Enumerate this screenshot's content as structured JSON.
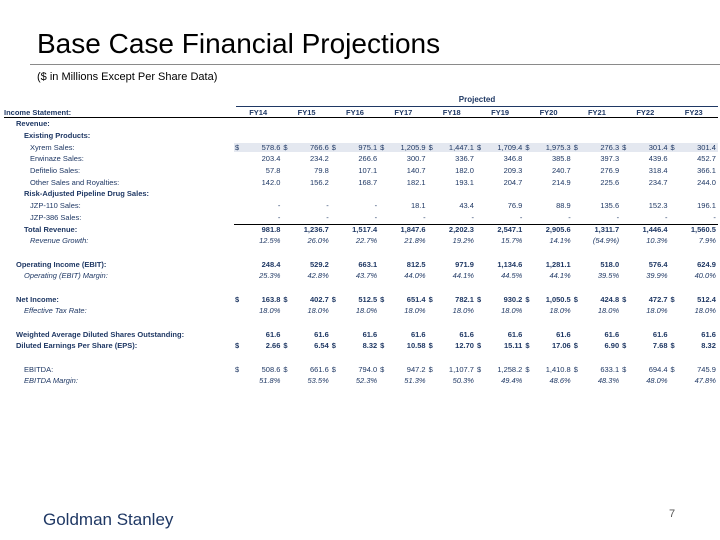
{
  "title": "Base Case Financial Projections",
  "subtitle": "($ in Millions Except Per Share Data)",
  "projected_label": "Projected",
  "header_label": "Income Statement:",
  "years": [
    "FY14",
    "FY15",
    "FY16",
    "FY17",
    "FY18",
    "FY19",
    "FY20",
    "FY21",
    "FY22",
    "FY23"
  ],
  "rows": {
    "revenue": "Revenue:",
    "existing": "Existing Products:",
    "xyrem": {
      "label": "Xyrem Sales:",
      "values": [
        "578.6",
        "766.6",
        "975.1",
        "1,205.9",
        "1,447.1",
        "1,709.4",
        "1,975.3",
        "276.3",
        "301.4",
        "301.4"
      ]
    },
    "erwinaze": {
      "label": "Erwinaze Sales:",
      "values": [
        "203.4",
        "234.2",
        "266.6",
        "300.7",
        "336.7",
        "346.8",
        "385.8",
        "397.3",
        "439.6",
        "452.7"
      ]
    },
    "defitelio": {
      "label": "Defitelio Sales:",
      "values": [
        "57.8",
        "79.8",
        "107.1",
        "140.7",
        "182.0",
        "209.3",
        "240.7",
        "276.9",
        "318.4",
        "366.1"
      ]
    },
    "other": {
      "label": "Other Sales and Royalties:",
      "values": [
        "142.0",
        "156.2",
        "168.7",
        "182.1",
        "193.1",
        "204.7",
        "214.9",
        "225.6",
        "234.7",
        "244.0"
      ]
    },
    "pipeline": "Risk-Adjusted Pipeline Drug Sales:",
    "jzp110": {
      "label": "JZP-110 Sales:",
      "values": [
        "-",
        "-",
        "-",
        "18.1",
        "43.4",
        "76.9",
        "88.9",
        "135.6",
        "152.3",
        "196.1"
      ]
    },
    "jzp386": {
      "label": "JZP-386 Sales:",
      "values": [
        "-",
        "-",
        "-",
        "-",
        "-",
        "-",
        "-",
        "-",
        "-",
        "-"
      ]
    },
    "total_revenue": {
      "label": "Total Revenue:",
      "values": [
        "981.8",
        "1,236.7",
        "1,517.4",
        "1,847.6",
        "2,202.3",
        "2,547.1",
        "2,905.6",
        "1,311.7",
        "1,446.4",
        "1,560.5"
      ]
    },
    "revenue_growth": {
      "label": "Revenue Growth:",
      "values": [
        "12.5%",
        "26.0%",
        "22.7%",
        "21.8%",
        "19.2%",
        "15.7%",
        "14.1%",
        "(54.9%)",
        "10.3%",
        "7.9%"
      ]
    },
    "ebit": {
      "label": "Operating Income (EBIT):",
      "values": [
        "248.4",
        "529.2",
        "663.1",
        "812.5",
        "971.9",
        "1,134.6",
        "1,281.1",
        "518.0",
        "576.4",
        "624.9"
      ]
    },
    "ebit_margin": {
      "label": "Operating (EBIT) Margin:",
      "values": [
        "25.3%",
        "42.8%",
        "43.7%",
        "44.0%",
        "44.1%",
        "44.5%",
        "44.1%",
        "39.5%",
        "39.9%",
        "40.0%"
      ]
    },
    "net_income": {
      "label": "Net Income:",
      "values": [
        "163.8",
        "402.7",
        "512.5",
        "651.4",
        "782.1",
        "930.2",
        "1,050.5",
        "424.8",
        "472.7",
        "512.4"
      ]
    },
    "tax_rate": {
      "label": "Effective Tax Rate:",
      "values": [
        "18.0%",
        "18.0%",
        "18.0%",
        "18.0%",
        "18.0%",
        "18.0%",
        "18.0%",
        "18.0%",
        "18.0%",
        "18.0%"
      ]
    },
    "shares": {
      "label": "Weighted Average Diluted Shares Outstanding:",
      "values": [
        "61.6",
        "61.6",
        "61.6",
        "61.6",
        "61.6",
        "61.6",
        "61.6",
        "61.6",
        "61.6",
        "61.6"
      ]
    },
    "eps": {
      "label": "Diluted Earnings Per Share (EPS):",
      "values": [
        "2.66",
        "6.54",
        "8.32",
        "10.58",
        "12.70",
        "15.11",
        "17.06",
        "6.90",
        "7.68",
        "8.32"
      ]
    },
    "ebitda": {
      "label": "EBITDA:",
      "values": [
        "508.6",
        "661.6",
        "794.0",
        "947.2",
        "1,107.7",
        "1,258.2",
        "1,410.8",
        "633.1",
        "694.4",
        "745.9"
      ]
    },
    "ebitda_margin": {
      "label": "EBITDA Margin:",
      "values": [
        "51.8%",
        "53.5%",
        "52.3%",
        "51.3%",
        "50.3%",
        "49.4%",
        "48.6%",
        "48.3%",
        "48.0%",
        "47.8%"
      ]
    }
  },
  "dollar_sign": "$",
  "footer": {
    "brand": "Goldman Stanley",
    "page_number": "7"
  }
}
